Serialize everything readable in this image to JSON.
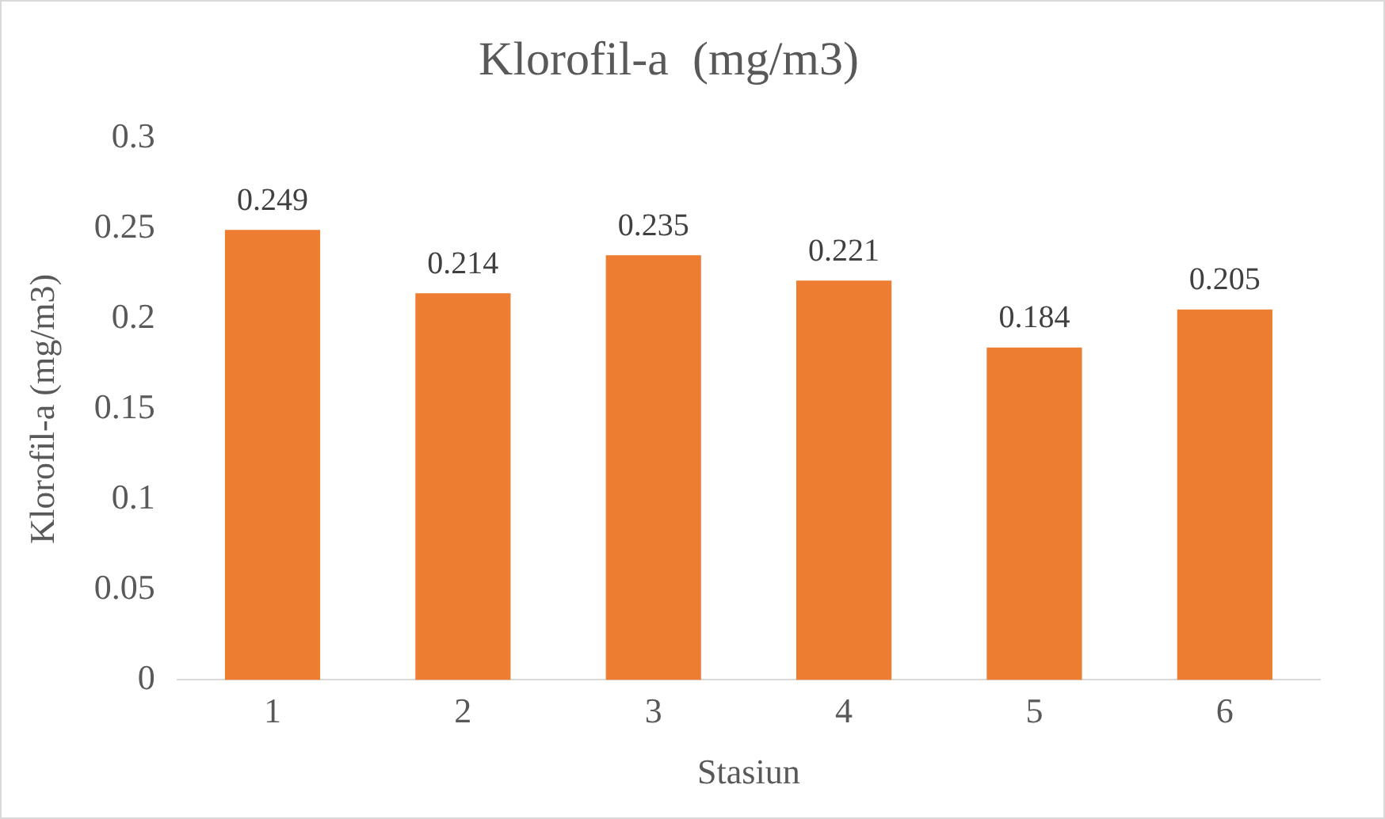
{
  "chart_data": {
    "type": "bar",
    "title": "Klorofil-a  (mg/m3)",
    "xlabel": "Stasiun",
    "ylabel": "Klorofil-a (mg/m3)",
    "categories": [
      "1",
      "2",
      "3",
      "4",
      "5",
      "6"
    ],
    "values": [
      0.249,
      0.214,
      0.235,
      0.221,
      0.184,
      0.205
    ],
    "color": "#ed7d31",
    "ylim": [
      0,
      0.3
    ],
    "yticks": [
      0,
      0.05,
      0.1,
      0.15,
      0.2,
      0.25,
      0.3
    ],
    "grid": false,
    "legend": false,
    "data_labels": true
  }
}
